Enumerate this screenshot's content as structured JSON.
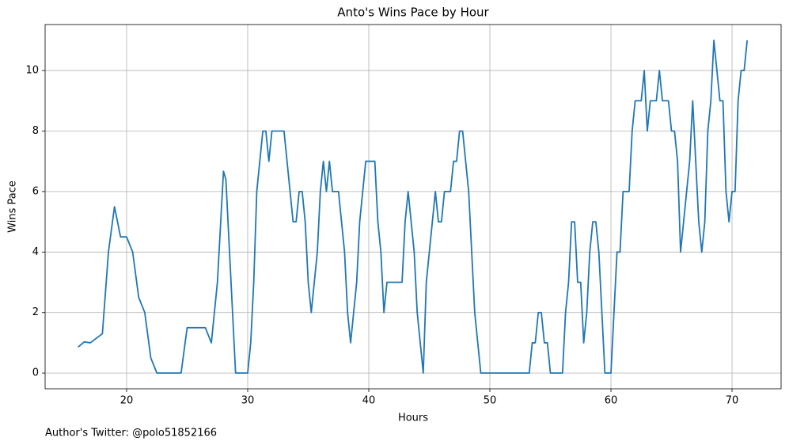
{
  "chart_data": {
    "type": "line",
    "title": "Anto's Wins Pace by Hour",
    "xlabel": "Hours",
    "ylabel": "Wins Pace",
    "footnote": "Author's Twitter: @polo51852166",
    "x": [
      16.0,
      16.5,
      17.0,
      18.0,
      18.5,
      19.0,
      19.5,
      20.0,
      20.5,
      21.0,
      21.5,
      22.0,
      22.5,
      24.5,
      25.0,
      26.5,
      27.0,
      27.5,
      28.0,
      28.2,
      29.0,
      30.0,
      30.25,
      30.5,
      30.75,
      31.25,
      31.5,
      31.75,
      32.0,
      33.0,
      33.5,
      33.75,
      34.0,
      34.25,
      34.5,
      34.75,
      35.0,
      35.25,
      35.75,
      36.0,
      36.25,
      36.5,
      36.75,
      37.0,
      37.5,
      38.0,
      38.25,
      38.5,
      39.0,
      39.25,
      39.75,
      40.5,
      40.75,
      41.0,
      41.25,
      41.5,
      42.75,
      43.0,
      43.25,
      43.75,
      44.0,
      44.25,
      44.5,
      44.75,
      45.5,
      45.75,
      46.0,
      46.25,
      46.75,
      47.0,
      47.25,
      47.5,
      47.75,
      48.25,
      48.75,
      49.25,
      53.25,
      53.5,
      53.75,
      54.0,
      54.25,
      54.5,
      54.75,
      55.0,
      56.0,
      56.25,
      56.5,
      56.75,
      57.0,
      57.25,
      57.5,
      57.75,
      58.0,
      58.25,
      58.5,
      58.75,
      59.0,
      59.5,
      60.0,
      60.25,
      60.5,
      60.75,
      61.0,
      61.5,
      61.75,
      62.0,
      62.5,
      62.75,
      63.0,
      63.25,
      63.75,
      64.0,
      64.25,
      64.75,
      65.0,
      65.25,
      65.5,
      65.75,
      66.25,
      66.5,
      66.75,
      67.0,
      67.25,
      67.5,
      67.75,
      68.0,
      68.25,
      68.5,
      68.75,
      69.0,
      69.25,
      69.5,
      69.75,
      70.0,
      70.25,
      70.5,
      70.75,
      71.0,
      71.25
    ],
    "values": [
      0.86,
      1.03,
      1.0,
      1.3,
      4.0,
      5.5,
      4.5,
      4.5,
      4.0,
      2.5,
      2.0,
      0.5,
      0,
      0,
      1.5,
      1.5,
      1.0,
      3.0,
      6.67,
      6.4,
      0,
      0,
      1,
      3,
      6,
      8,
      8,
      7,
      8,
      8,
      6,
      5,
      5,
      6,
      6,
      5,
      3,
      2,
      4,
      6,
      7,
      6,
      7,
      6,
      6,
      4,
      2,
      1,
      3,
      5,
      7,
      7,
      5,
      4,
      2,
      3,
      3,
      5,
      6,
      4,
      2,
      1,
      0,
      3,
      6,
      5,
      5,
      6,
      6,
      7,
      7,
      8,
      8,
      6,
      2,
      0,
      0,
      1,
      1,
      2,
      2,
      1,
      1,
      0,
      0,
      2,
      3,
      5,
      5,
      3,
      3,
      1,
      2,
      4,
      5,
      5,
      4,
      0,
      0,
      2,
      4,
      4,
      6,
      6,
      8,
      9,
      9,
      10,
      8,
      9,
      9,
      10,
      9,
      9,
      8,
      8,
      7,
      4,
      6,
      7,
      9,
      7,
      5,
      4,
      5,
      8,
      9,
      11,
      10,
      9,
      9,
      6,
      5,
      6,
      6,
      9,
      10,
      10,
      11
    ],
    "color": "#1f77b4",
    "xlim": [
      13.27,
      74.05
    ],
    "ylim": [
      -0.52,
      11.52
    ],
    "xticks": [
      20,
      30,
      40,
      50,
      60,
      70
    ],
    "yticks": [
      0,
      2,
      4,
      6,
      8,
      10
    ],
    "grid": true
  }
}
